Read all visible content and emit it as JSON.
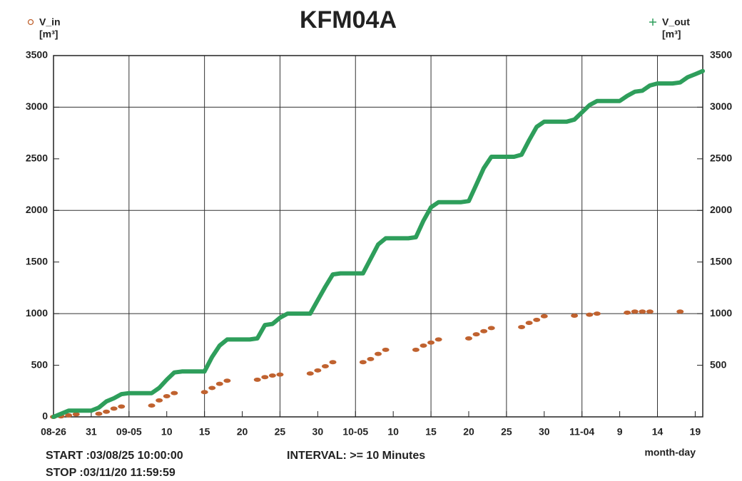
{
  "chart_data": {
    "type": "line",
    "title": "KFM04A",
    "x_label": "month-day",
    "y_label": "[m³]",
    "y2_label": "[m³]",
    "start_text": "START :03/08/25 10:00:00",
    "stop_text": "STOP :03/11/20 11:59:59",
    "interval_text": "INTERVAL: >= 10 Minutes",
    "x": [
      "08-26",
      "08-27",
      "08-28",
      "08-29",
      "08-30",
      "08-31",
      "09-01",
      "09-02",
      "09-03",
      "09-04",
      "09-05",
      "09-06",
      "09-07",
      "09-08",
      "09-09",
      "09-10",
      "09-11",
      "09-12",
      "09-13",
      "09-14",
      "09-15",
      "09-16",
      "09-17",
      "09-18",
      "09-19",
      "09-20",
      "09-21",
      "09-22",
      "09-23",
      "09-24",
      "09-25",
      "09-26",
      "09-27",
      "09-28",
      "09-29",
      "09-30",
      "10-01",
      "10-02",
      "10-03",
      "10-04",
      "10-05",
      "10-06",
      "10-07",
      "10-08",
      "10-09",
      "10-10",
      "10-11",
      "10-12",
      "10-13",
      "10-14",
      "10-15",
      "10-16",
      "10-17",
      "10-18",
      "10-19",
      "10-20",
      "10-21",
      "10-22",
      "10-23",
      "10-24",
      "10-25",
      "10-26",
      "10-27",
      "10-28",
      "10-29",
      "10-30",
      "10-31",
      "11-01",
      "11-02",
      "11-03",
      "11-04",
      "11-05",
      "11-06",
      "11-07",
      "11-08",
      "11-09",
      "11-10",
      "11-11",
      "11-12",
      "11-13",
      "11-14",
      "11-15",
      "11-16",
      "11-17",
      "11-18",
      "11-19",
      "11-20"
    ],
    "series": [
      {
        "name": "V_in",
        "color": "#c0622f",
        "marker": "circle",
        "axis": "y",
        "values": [
          0,
          5,
          15,
          25,
          null,
          null,
          30,
          50,
          80,
          100,
          null,
          null,
          null,
          110,
          160,
          200,
          230,
          null,
          null,
          null,
          240,
          280,
          320,
          350,
          null,
          null,
          null,
          360,
          385,
          400,
          410,
          null,
          null,
          null,
          420,
          450,
          490,
          530,
          null,
          null,
          null,
          530,
          560,
          610,
          650,
          null,
          null,
          null,
          650,
          690,
          720,
          750,
          null,
          null,
          null,
          760,
          800,
          830,
          860,
          null,
          null,
          null,
          870,
          910,
          940,
          975,
          null,
          null,
          null,
          980,
          null,
          990,
          1000,
          null,
          null,
          null,
          1010,
          1020,
          1020,
          1020,
          null,
          null,
          null,
          1020,
          null,
          null,
          null
        ]
      },
      {
        "name": "V_out",
        "color": "#2e9e5b",
        "marker": "line",
        "axis": "y2",
        "values": [
          0,
          30,
          60,
          60,
          60,
          60,
          90,
          150,
          180,
          220,
          230,
          230,
          230,
          230,
          280,
          360,
          430,
          440,
          440,
          440,
          440,
          580,
          690,
          750,
          750,
          750,
          750,
          760,
          890,
          900,
          960,
          1000,
          1000,
          1000,
          1000,
          1130,
          1260,
          1380,
          1390,
          1390,
          1390,
          1390,
          1530,
          1670,
          1730,
          1730,
          1730,
          1730,
          1740,
          1900,
          2030,
          2080,
          2080,
          2080,
          2080,
          2090,
          2250,
          2410,
          2520,
          2520,
          2520,
          2520,
          2540,
          2680,
          2810,
          2860,
          2860,
          2860,
          2860,
          2880,
          2950,
          3020,
          3060,
          3060,
          3060,
          3060,
          3110,
          3150,
          3160,
          3210,
          3230,
          3230,
          3230,
          3240,
          3290,
          3320,
          3350
        ]
      }
    ],
    "xlim": [
      "08-26",
      "11-20"
    ],
    "xticks": [
      "08-26",
      {
        "value": "08-31",
        "label": "31"
      },
      "09-05",
      {
        "value": "09-10",
        "label": "10"
      },
      {
        "value": "09-15",
        "label": "15"
      },
      {
        "value": "09-20",
        "label": "20"
      },
      {
        "value": "09-25",
        "label": "25"
      },
      {
        "value": "09-30",
        "label": "30"
      },
      "10-05",
      {
        "value": "10-10",
        "label": "10"
      },
      {
        "value": "10-15",
        "label": "15"
      },
      {
        "value": "10-20",
        "label": "20"
      },
      {
        "value": "10-25",
        "label": "25"
      },
      {
        "value": "10-30",
        "label": "30"
      },
      "11-04",
      {
        "value": "11-09",
        "label": "9"
      },
      {
        "value": "11-14",
        "label": "14"
      },
      {
        "value": "11-19",
        "label": "19"
      }
    ],
    "xgrid": [
      "09-05",
      "09-15",
      "09-25",
      "10-05",
      "10-15",
      "10-25",
      "11-04",
      "11-14"
    ],
    "ylim": [
      0,
      3500
    ],
    "yticks": [
      0,
      500,
      1000,
      1500,
      2000,
      2500,
      3000,
      3500
    ],
    "y2lim": [
      0,
      3500
    ],
    "y2ticks": [
      500,
      1000,
      1500,
      2000,
      2500,
      3000,
      3500
    ],
    "ygrid": [
      1000,
      2000,
      3000
    ]
  }
}
